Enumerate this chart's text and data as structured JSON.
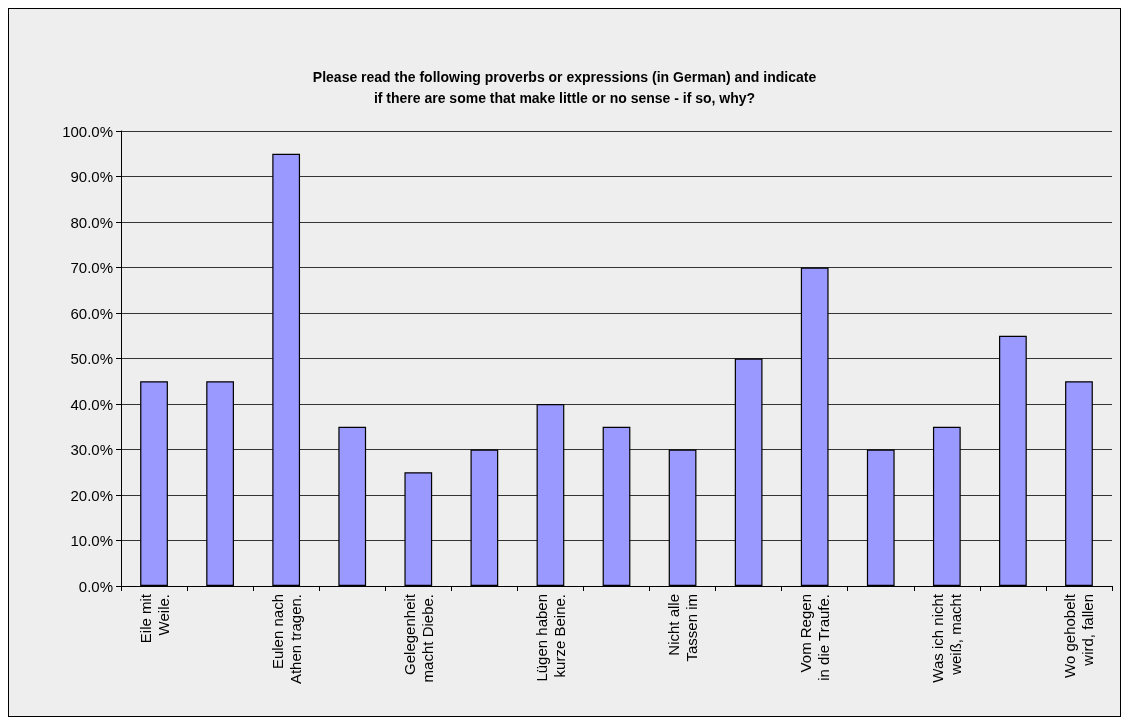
{
  "chart_data": {
    "type": "bar",
    "title": "Please read the following proverbs or expressions (in German) and indicate\nif there are some that make little or no sense - if so, why?",
    "categories": [
      "Eile mit\nWeile.",
      null,
      "Eulen nach\nAthen tragen.",
      null,
      "Gelegenheit\nmacht Diebe.",
      null,
      "Lügen haben\nkurze Beine.",
      null,
      "Nicht alle\nTassen im",
      null,
      "Vom Regen\nin die Traufe.",
      null,
      "Was ich nicht\nweiß, macht",
      null,
      "Wo gehobelt\nwird, fallen"
    ],
    "values": [
      45,
      45,
      95,
      35,
      25,
      30,
      40,
      35,
      30,
      50,
      70,
      30,
      35,
      55,
      45
    ],
    "color": "#9999ff",
    "ylim": [
      0,
      100
    ],
    "yticks": [
      {
        "value": 0,
        "label": "0.0%"
      },
      {
        "value": 10,
        "label": "10.0%"
      },
      {
        "value": 20,
        "label": "20.0%"
      },
      {
        "value": 30,
        "label": "30.0%"
      },
      {
        "value": 40,
        "label": "40.0%"
      },
      {
        "value": 50,
        "label": "50.0%"
      },
      {
        "value": 60,
        "label": "60.0%"
      },
      {
        "value": 70,
        "label": "70.0%"
      },
      {
        "value": 80,
        "label": "80.0%"
      },
      {
        "value": 90,
        "label": "90.0%"
      },
      {
        "value": 100,
        "label": "100.0%"
      }
    ],
    "grid": "y"
  }
}
